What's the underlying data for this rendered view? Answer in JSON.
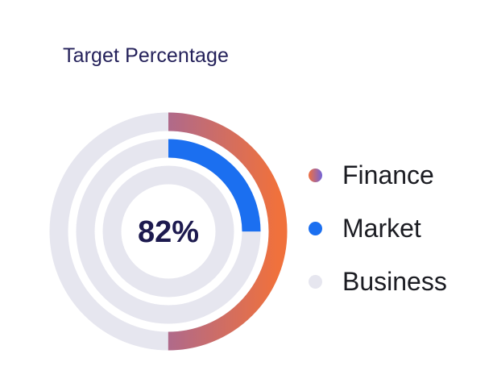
{
  "card": {
    "title": "Target Percentage"
  },
  "chart_data": {
    "type": "radial-bar",
    "title": "Target Percentage",
    "center_label": "82%",
    "unit": "%",
    "max": 100,
    "track_color": "#E6E6EF",
    "series": [
      {
        "name": "Finance",
        "value": 50,
        "colors": [
          "#F0713C",
          "#6F62D9"
        ],
        "marker_colors": [
          "#F07040",
          "#7262D8"
        ]
      },
      {
        "name": "Market",
        "value": 25,
        "colors": [
          "#1B6FF0"
        ],
        "marker_colors": [
          "#1B6FF0"
        ]
      },
      {
        "name": "Business",
        "value": 0,
        "colors": [
          "#E6E6EF"
        ],
        "marker_colors": [
          "#E6E6EF"
        ]
      }
    ],
    "legend_position": "right"
  }
}
